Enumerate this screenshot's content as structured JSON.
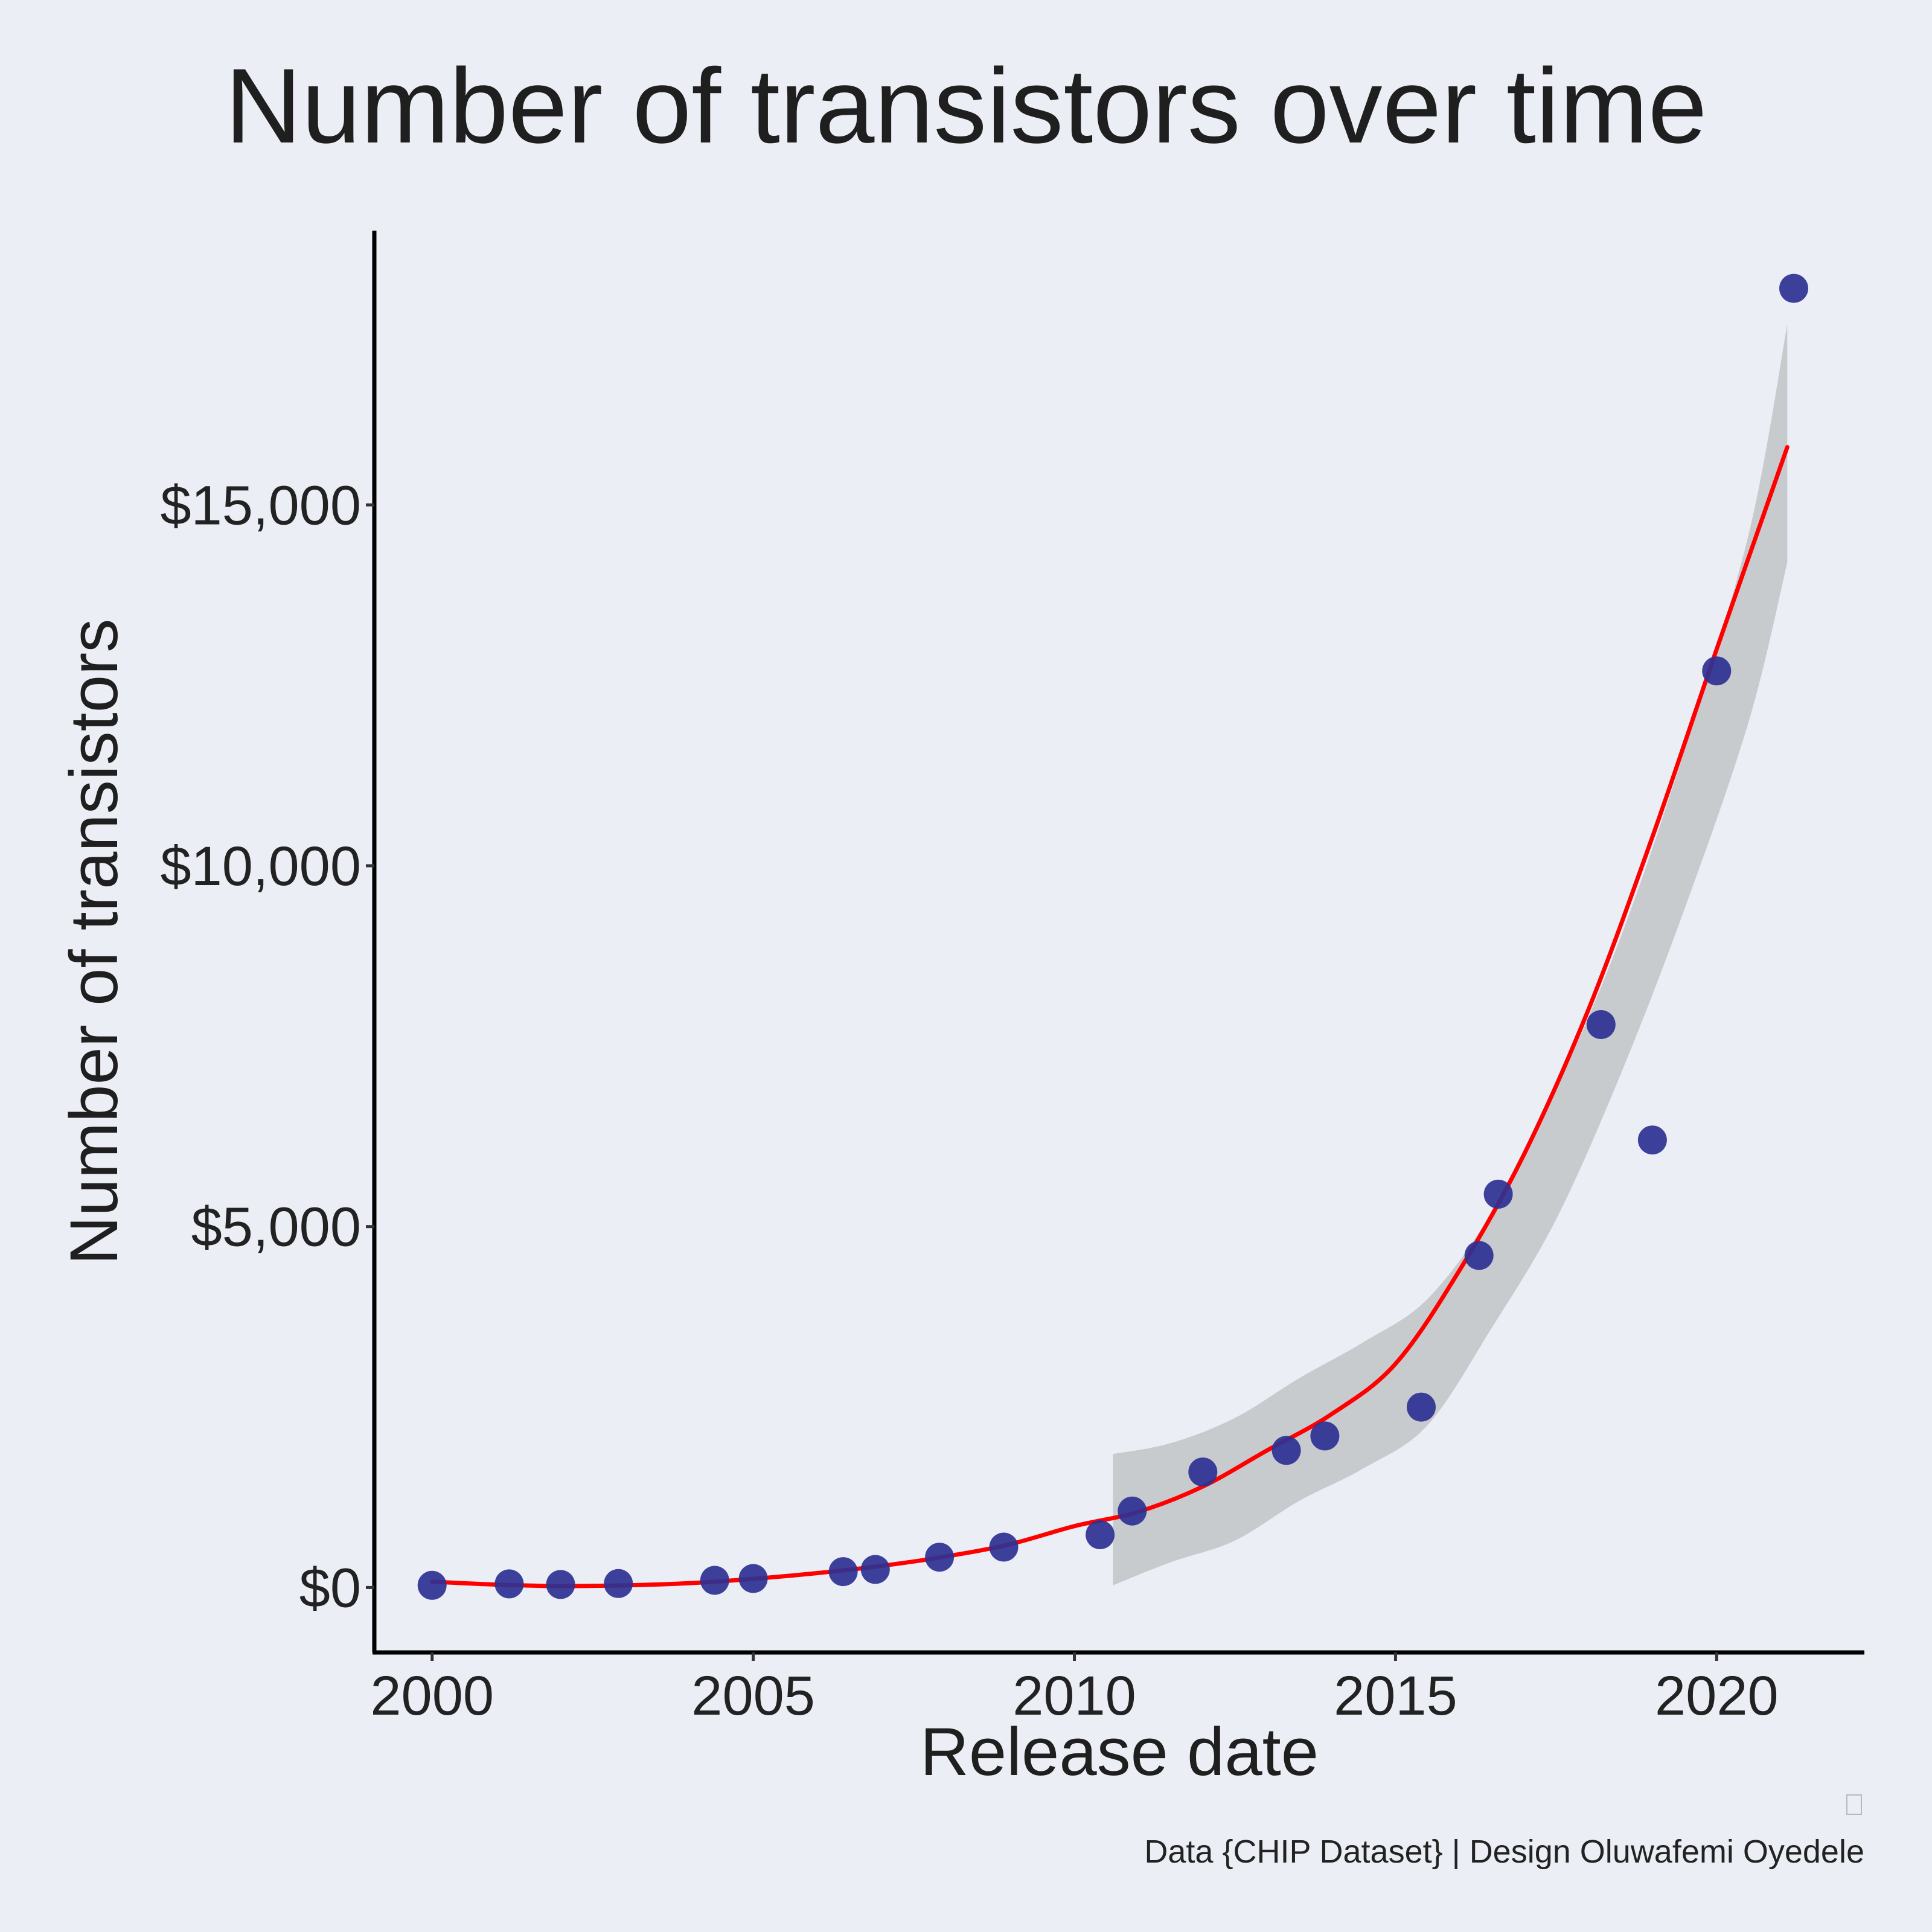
{
  "chart_data": {
    "type": "scatter",
    "title": "Number of transistors over time",
    "xlabel": "Release date",
    "ylabel": "Number of transistors",
    "xlim": [
      1999.1,
      2022.3
    ],
    "ylim": [
      -900,
      18800
    ],
    "x_ticks": [
      {
        "value": 2000,
        "label": "2000"
      },
      {
        "value": 2005,
        "label": "2005"
      },
      {
        "value": 2010,
        "label": "2010"
      },
      {
        "value": 2015,
        "label": "2015"
      },
      {
        "value": 2020,
        "label": "2020"
      }
    ],
    "y_ticks": [
      {
        "value": 0,
        "label": "$0"
      },
      {
        "value": 5000,
        "label": "$5,000"
      },
      {
        "value": 10000,
        "label": "$10,000"
      },
      {
        "value": 15000,
        "label": "$15,000"
      }
    ],
    "grid": false,
    "legend": "none",
    "colors": {
      "points": "#2e3192",
      "trend_line": "#ff0000",
      "confidence_band": "#b3b5b7",
      "background": "#ebeff5"
    },
    "points": [
      {
        "x": 2000.0,
        "y": 30
      },
      {
        "x": 2001.2,
        "y": 50
      },
      {
        "x": 2002.0,
        "y": 42
      },
      {
        "x": 2002.9,
        "y": 55
      },
      {
        "x": 2004.4,
        "y": 100
      },
      {
        "x": 2005.0,
        "y": 125
      },
      {
        "x": 2006.4,
        "y": 220
      },
      {
        "x": 2006.9,
        "y": 250
      },
      {
        "x": 2007.9,
        "y": 420
      },
      {
        "x": 2008.9,
        "y": 560
      },
      {
        "x": 2010.4,
        "y": 731
      },
      {
        "x": 2010.9,
        "y": 1060
      },
      {
        "x": 2012.0,
        "y": 1600
      },
      {
        "x": 2013.3,
        "y": 1900
      },
      {
        "x": 2013.9,
        "y": 2100
      },
      {
        "x": 2015.4,
        "y": 2500
      },
      {
        "x": 2016.3,
        "y": 4600
      },
      {
        "x": 2016.6,
        "y": 5450
      },
      {
        "x": 2018.2,
        "y": 7800
      },
      {
        "x": 2019.0,
        "y": 6200
      },
      {
        "x": 2020.0,
        "y": 12700
      },
      {
        "x": 2021.2,
        "y": 18000
      }
    ],
    "trend_line": {
      "x": [
        2000,
        2001,
        2002,
        2003,
        2004,
        2005,
        2006,
        2007,
        2008,
        2009,
        2010,
        2011,
        2012,
        2013,
        2014,
        2015,
        2016,
        2017,
        2018,
        2019,
        2020,
        2021.1
      ],
      "y": [
        80,
        40,
        20,
        30,
        60,
        120,
        200,
        300,
        430,
        600,
        850,
        1050,
        1400,
        1900,
        2400,
        3100,
        4400,
        6000,
        8000,
        10400,
        13000,
        15800
      ]
    },
    "confidence_band": {
      "x": [
        2010.6,
        2011.5,
        2012.5,
        2013.5,
        2014.5,
        2015.5,
        2016.5,
        2017.5,
        2018.5,
        2019.5,
        2020.5,
        2021.1
      ],
      "upper": [
        1850,
        2000,
        2350,
        2900,
        3400,
        4000,
        5200,
        6900,
        9000,
        11600,
        14600,
        17500
      ],
      "lower": [
        30,
        350,
        650,
        1200,
        1650,
        2250,
        3600,
        5100,
        7100,
        9400,
        12000,
        14200
      ]
    }
  },
  "footer": {
    "caption": "Data {CHIP Dataset} | Design Oluwafemi Oyedele",
    "icon": "image-placeholder-icon"
  }
}
